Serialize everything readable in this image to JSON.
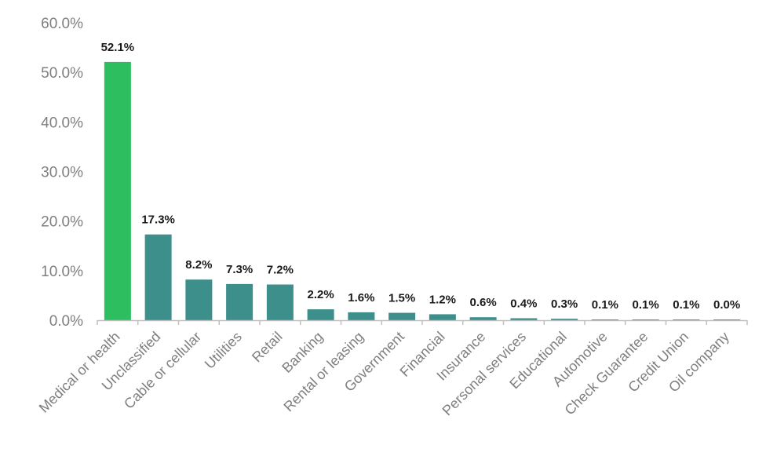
{
  "chart_data": {
    "type": "bar",
    "title": "",
    "xlabel": "",
    "ylabel": "",
    "categories": [
      "Medical or health",
      "Unclassified",
      "Cable or cellular",
      "Utilities",
      "Retail",
      "Banking",
      "Rental or leasing",
      "Government",
      "Financial",
      "Insurance",
      "Personal services",
      "Educational",
      "Automotive",
      "Check Guarantee",
      "Credit Union",
      "Oil company"
    ],
    "values": [
      52.1,
      17.3,
      8.2,
      7.3,
      7.2,
      2.2,
      1.6,
      1.5,
      1.2,
      0.6,
      0.4,
      0.3,
      0.1,
      0.1,
      0.1,
      0.0
    ],
    "value_labels": [
      "52.1%",
      "17.3%",
      "8.2%",
      "7.3%",
      "7.2%",
      "2.2%",
      "1.6%",
      "1.5%",
      "1.2%",
      "0.6%",
      "0.4%",
      "0.3%",
      "0.1%",
      "0.1%",
      "0.1%",
      "0.0%"
    ],
    "yticks": [
      0,
      10,
      20,
      30,
      40,
      50,
      60
    ],
    "ytick_labels": [
      "0.0%",
      "10.0%",
      "20.0%",
      "30.0%",
      "40.0%",
      "50.0%",
      "60.0%"
    ],
    "ylim": [
      0,
      60
    ],
    "grid": false,
    "legend": "none",
    "colors": {
      "highlight": "#2dbe60",
      "bar": "#3d8f8b",
      "axis": "#bfbfbf",
      "tick_text": "#7f7f7f",
      "label_text": "#1a1a1a"
    },
    "highlight_index": 0
  }
}
